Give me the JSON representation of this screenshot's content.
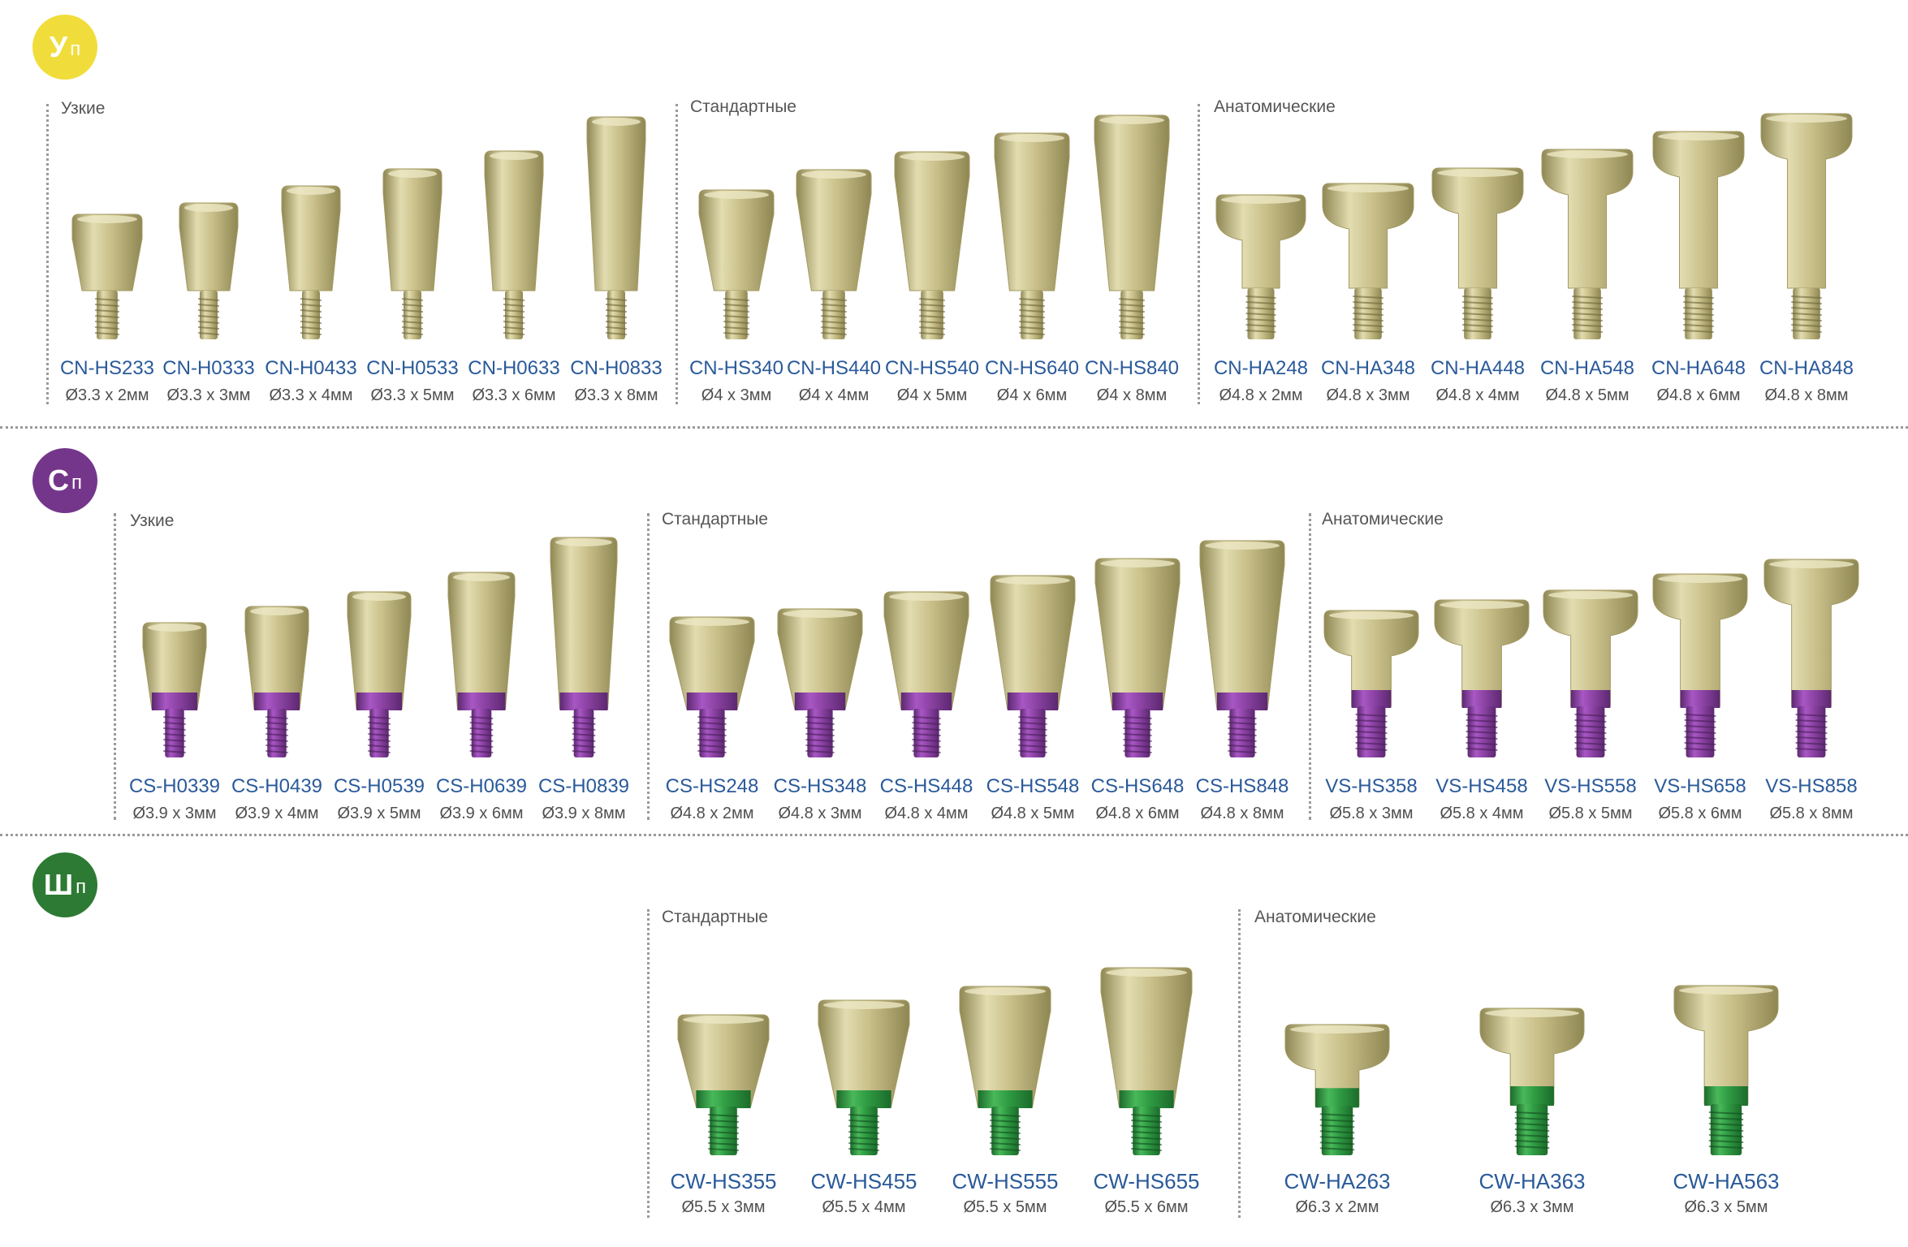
{
  "colors": {
    "gold_light": "#e2dcb0",
    "gold_mid": "#c9c08a",
    "gold_dark": "#8f8753",
    "purple": "#8e44a6",
    "purple_dark": "#5c2870",
    "green": "#2f9c43",
    "green_dark": "#1c6b2b",
    "badge_yellow": "#f0dd3b",
    "badge_purple": "#74368b",
    "badge_green": "#2c7a33",
    "code_blue": "#2a5a9a"
  },
  "groups": [
    {
      "badge_main": "У",
      "badge_sub": "п",
      "collar": "gold",
      "sections": [
        {
          "label": "Узкие",
          "items": [
            {
              "code": "CN-HS233",
              "size": "Ø3.3 x 2мм"
            },
            {
              "code": "CN-H0333",
              "size": "Ø3.3 x 3мм"
            },
            {
              "code": "CN-H0433",
              "size": "Ø3.3 x 4мм"
            },
            {
              "code": "CN-H0533",
              "size": "Ø3.3 x 5мм"
            },
            {
              "code": "CN-H0633",
              "size": "Ø3.3 x 6мм"
            },
            {
              "code": "CN-H0833",
              "size": "Ø3.3 x 8мм"
            }
          ]
        },
        {
          "label": "Стандартные",
          "items": [
            {
              "code": "CN-HS340",
              "size": "Ø4 x 3мм"
            },
            {
              "code": "CN-HS440",
              "size": "Ø4 x 4мм"
            },
            {
              "code": "CN-HS540",
              "size": "Ø4 x 5мм"
            },
            {
              "code": "CN-HS640",
              "size": "Ø4 x 6мм"
            },
            {
              "code": "CN-HS840",
              "size": "Ø4 x 8мм"
            }
          ]
        },
        {
          "label": "Анатомические",
          "items": [
            {
              "code": "CN-HA248",
              "size": "Ø4.8 x 2мм"
            },
            {
              "code": "CN-HA348",
              "size": "Ø4.8 x 3мм"
            },
            {
              "code": "CN-HA448",
              "size": "Ø4.8 x 4мм"
            },
            {
              "code": "CN-HA548",
              "size": "Ø4.8 x 5мм"
            },
            {
              "code": "CN-HA648",
              "size": "Ø4.8 x 6мм"
            },
            {
              "code": "CN-HA848",
              "size": "Ø4.8 x 8мм"
            }
          ]
        }
      ]
    },
    {
      "badge_main": "С",
      "badge_sub": "п",
      "collar": "purple",
      "sections": [
        {
          "label": "Узкие",
          "items": [
            {
              "code": "CS-H0339",
              "size": "Ø3.9 x 3мм"
            },
            {
              "code": "CS-H0439",
              "size": "Ø3.9 x 4мм"
            },
            {
              "code": "CS-H0539",
              "size": "Ø3.9 x 5мм"
            },
            {
              "code": "CS-H0639",
              "size": "Ø3.9 x 6мм"
            },
            {
              "code": "CS-H0839",
              "size": "Ø3.9 x 8мм"
            }
          ]
        },
        {
          "label": "Стандартные",
          "items": [
            {
              "code": "CS-HS248",
              "size": "Ø4.8 x 2мм"
            },
            {
              "code": "CS-HS348",
              "size": "Ø4.8 x 3мм"
            },
            {
              "code": "CS-HS448",
              "size": "Ø4.8 x 4мм"
            },
            {
              "code": "CS-HS548",
              "size": "Ø4.8 x 5мм"
            },
            {
              "code": "CS-HS648",
              "size": "Ø4.8 x 6мм"
            },
            {
              "code": "CS-HS848",
              "size": "Ø4.8 x 8мм"
            }
          ]
        },
        {
          "label": "Анатомические",
          "items": [
            {
              "code": "VS-HS358",
              "size": "Ø5.8 x 3мм"
            },
            {
              "code": "VS-HS458",
              "size": "Ø5.8 x 4мм"
            },
            {
              "code": "VS-HS558",
              "size": "Ø5.8 x 5мм"
            },
            {
              "code": "VS-HS658",
              "size": "Ø5.8 x 6мм"
            },
            {
              "code": "VS-HS858",
              "size": "Ø5.8 x 8мм"
            }
          ]
        }
      ]
    },
    {
      "badge_main": "Ш",
      "badge_sub": "п",
      "collar": "green",
      "sections": [
        {
          "label": "Стандартные",
          "items": [
            {
              "code": "CW-HS355",
              "size": "Ø5.5 x 3мм"
            },
            {
              "code": "CW-HS455",
              "size": "Ø5.5 x 4мм"
            },
            {
              "code": "CW-HS555",
              "size": "Ø5.5 x 5мм"
            },
            {
              "code": "CW-HS655",
              "size": "Ø5.5 x 6мм"
            }
          ]
        },
        {
          "label": "Анатомические",
          "items": [
            {
              "code": "CW-HA263",
              "size": "Ø6.3 x 2мм"
            },
            {
              "code": "CW-HA363",
              "size": "Ø6.3 x 3мм"
            },
            {
              "code": "CW-HA563",
              "size": "Ø6.3 x 5мм"
            }
          ]
        }
      ]
    }
  ]
}
